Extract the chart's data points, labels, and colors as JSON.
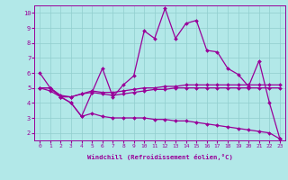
{
  "title": "",
  "xlabel": "Windchill (Refroidissement éolien,°C)",
  "background_color": "#b2e8e8",
  "grid_color": "#90cece",
  "line_color": "#990099",
  "x_values": [
    0,
    1,
    2,
    3,
    4,
    5,
    6,
    7,
    8,
    9,
    10,
    11,
    12,
    13,
    14,
    15,
    16,
    17,
    18,
    19,
    20,
    21,
    22,
    23
  ],
  "line1": [
    6.0,
    5.0,
    4.4,
    4.0,
    3.1,
    4.7,
    6.3,
    4.4,
    5.2,
    5.8,
    8.8,
    8.3,
    10.3,
    8.3,
    9.3,
    9.5,
    7.5,
    7.4,
    6.3,
    5.9,
    5.1,
    6.8,
    4.0,
    1.6
  ],
  "line2": [
    5.0,
    5.0,
    4.4,
    4.4,
    4.6,
    4.8,
    4.7,
    4.7,
    4.8,
    4.9,
    5.0,
    5.0,
    5.1,
    5.1,
    5.2,
    5.2,
    5.2,
    5.2,
    5.2,
    5.2,
    5.2,
    5.2,
    5.2,
    5.2
  ],
  "line3": [
    5.0,
    5.0,
    4.5,
    4.4,
    4.6,
    4.7,
    4.6,
    4.5,
    4.6,
    4.7,
    4.8,
    4.9,
    4.9,
    5.0,
    5.0,
    5.0,
    5.0,
    5.0,
    5.0,
    5.0,
    5.0,
    5.0,
    5.0,
    5.0
  ],
  "line4": [
    5.0,
    4.8,
    4.4,
    4.0,
    3.1,
    3.3,
    3.1,
    3.0,
    3.0,
    3.0,
    3.0,
    2.9,
    2.9,
    2.8,
    2.8,
    2.7,
    2.6,
    2.5,
    2.4,
    2.3,
    2.2,
    2.1,
    2.0,
    1.6
  ],
  "ylim": [
    1.5,
    10.5
  ],
  "xlim": [
    -0.5,
    23.5
  ],
  "yticks": [
    2,
    3,
    4,
    5,
    6,
    7,
    8,
    9,
    10
  ],
  "xticks": [
    0,
    1,
    2,
    3,
    4,
    5,
    6,
    7,
    8,
    9,
    10,
    11,
    12,
    13,
    14,
    15,
    16,
    17,
    18,
    19,
    20,
    21,
    22,
    23
  ]
}
